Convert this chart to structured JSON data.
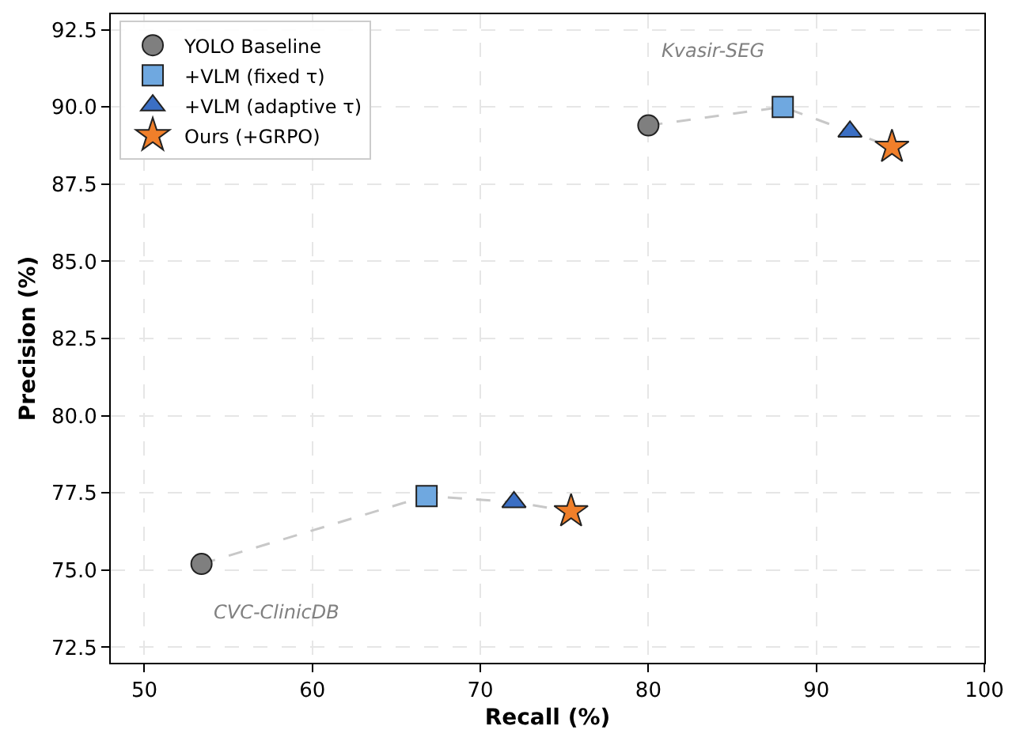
{
  "chart_data": {
    "type": "scatter",
    "xlabel": "Recall (%)",
    "ylabel": "Precision (%)",
    "xlim": [
      48,
      100
    ],
    "ylim": [
      72,
      93
    ],
    "xticks": [
      50,
      60,
      70,
      80,
      90,
      100
    ],
    "yticks": [
      {
        "value": 72.5,
        "label": "72.5"
      },
      {
        "value": 75,
        "label": "75.0"
      },
      {
        "value": 77.5,
        "label": "77.5"
      },
      {
        "value": 80,
        "label": "80.0"
      },
      {
        "value": 82.5,
        "label": "82.5"
      },
      {
        "value": 85,
        "label": "85.0"
      },
      {
        "value": 87.5,
        "label": "87.5"
      },
      {
        "value": 90,
        "label": "90.0"
      },
      {
        "value": 92.5,
        "label": "92.5"
      }
    ],
    "grid": true,
    "legend": "top left",
    "series": [
      {
        "type": "line",
        "color": "#c8c8c8",
        "line_style": "dashed",
        "marker": "none",
        "x": [
          80.0,
          88.0,
          92.0,
          94.5
        ],
        "values": [
          89.4,
          90.0,
          89.2,
          88.7
        ]
      },
      {
        "type": "line",
        "color": "#c8c8c8",
        "line_style": "dashed",
        "marker": "none",
        "x": [
          53.4,
          66.8,
          72.0,
          75.4
        ],
        "values": [
          75.2,
          77.4,
          77.2,
          76.9
        ]
      },
      {
        "name": "YOLO Baseline",
        "color": "#7f7f7f",
        "marker": "circle",
        "x": [
          80.0,
          53.4
        ],
        "values": [
          89.4,
          75.2
        ]
      },
      {
        "name": "+VLM (fixed τ)",
        "color": "#6fa8e0",
        "marker": "square",
        "x": [
          88.0,
          66.8
        ],
        "values": [
          90.0,
          77.4
        ]
      },
      {
        "name": "+VLM (adaptive τ)",
        "color": "#3b6fc4",
        "marker": "triangle",
        "x": [
          92.0,
          72.0
        ],
        "values": [
          89.2,
          77.2
        ]
      },
      {
        "name": "Ours (+GRPO)",
        "color": "#f07f2a",
        "marker": "star",
        "x": [
          94.5,
          75.4
        ],
        "values": [
          88.7,
          76.9
        ]
      }
    ],
    "annotations": [
      "Kvasir-SEG",
      "CVC-ClinicDB"
    ]
  }
}
